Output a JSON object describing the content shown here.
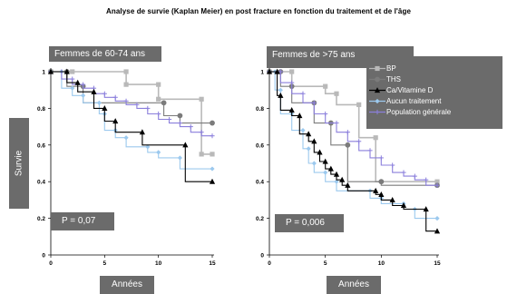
{
  "title": "Analyse de survie (Kaplan Meier) en post fracture en fonction du traitement et de l'âge",
  "colors": {
    "BP": "#b9b9b9",
    "THS": "#7b7b7b",
    "CaVitD": "#000000",
    "Aucun": "#9cc9ee",
    "Population": "#8b7fdc",
    "box": "#6b6b6b"
  },
  "legend": [
    {
      "key": "BP",
      "label": "BP",
      "marker": "square"
    },
    {
      "key": "THS",
      "label": "THS",
      "marker": "circle"
    },
    {
      "key": "CaVitD",
      "label": "Ca/Vitamine D",
      "marker": "triangle"
    },
    {
      "key": "Aucun",
      "label": "Aucun traitement",
      "marker": "diamond"
    },
    {
      "key": "Population",
      "label": "Population générale",
      "marker": "plus"
    }
  ],
  "chart_data": [
    {
      "type": "line",
      "title": "Femmes de 60-74 ans",
      "xlabel": "Années",
      "ylabel": "Survie",
      "annotation": "P = 0,07",
      "xlim": [
        0,
        15
      ],
      "ylim": [
        0,
        1
      ],
      "xticks": [
        "0",
        "5",
        "10",
        "15"
      ],
      "yticks": [
        "0",
        "0.2",
        "0.4",
        "0.6",
        "0.8",
        "1"
      ],
      "series": [
        {
          "key": "BP",
          "name": "BP",
          "points": [
            [
              0,
              1
            ],
            [
              2,
              1
            ],
            [
              7,
              1
            ],
            [
              7,
              0.93
            ],
            [
              10,
              0.93
            ],
            [
              10,
              0.85
            ],
            [
              14,
              0.85
            ],
            [
              14,
              0.55
            ],
            [
              15,
              0.55
            ]
          ]
        },
        {
          "key": "THS",
          "name": "THS",
          "points": [
            [
              0,
              1
            ],
            [
              1.5,
              1
            ],
            [
              1.5,
              0.92
            ],
            [
              3,
              0.92
            ],
            [
              3,
              0.83
            ],
            [
              10.5,
              0.83
            ],
            [
              10.5,
              0.76
            ],
            [
              12,
              0.76
            ],
            [
              12,
              0.72
            ],
            [
              15,
              0.72
            ]
          ]
        },
        {
          "key": "CaVitD",
          "name": "Ca/Vitamine D",
          "points": [
            [
              0,
              1
            ],
            [
              1.5,
              1
            ],
            [
              1.5,
              0.94
            ],
            [
              2.5,
              0.94
            ],
            [
              2.5,
              0.89
            ],
            [
              4,
              0.89
            ],
            [
              4,
              0.8
            ],
            [
              5,
              0.8
            ],
            [
              5,
              0.73
            ],
            [
              6,
              0.73
            ],
            [
              6,
              0.67
            ],
            [
              8.5,
              0.67
            ],
            [
              8.5,
              0.6
            ],
            [
              12.5,
              0.6
            ],
            [
              12.5,
              0.4
            ],
            [
              15,
              0.4
            ]
          ]
        },
        {
          "key": "Aucun",
          "name": "Aucun traitement",
          "points": [
            [
              0,
              1
            ],
            [
              1,
              1
            ],
            [
              1,
              0.91
            ],
            [
              2,
              0.91
            ],
            [
              2,
              0.87
            ],
            [
              3,
              0.87
            ],
            [
              3,
              0.83
            ],
            [
              4.5,
              0.83
            ],
            [
              4.5,
              0.77
            ],
            [
              5,
              0.77
            ],
            [
              5,
              0.68
            ],
            [
              6,
              0.68
            ],
            [
              6,
              0.64
            ],
            [
              7,
              0.64
            ],
            [
              7,
              0.59
            ],
            [
              9,
              0.59
            ],
            [
              9,
              0.56
            ],
            [
              10,
              0.56
            ],
            [
              10,
              0.53
            ],
            [
              12,
              0.53
            ],
            [
              12,
              0.47
            ],
            [
              15,
              0.47
            ]
          ]
        },
        {
          "key": "Population",
          "name": "Population générale",
          "points": [
            [
              0,
              1
            ],
            [
              1,
              1
            ],
            [
              1,
              0.96
            ],
            [
              2,
              0.96
            ],
            [
              2,
              0.93
            ],
            [
              3,
              0.93
            ],
            [
              3,
              0.91
            ],
            [
              4,
              0.91
            ],
            [
              4,
              0.88
            ],
            [
              5,
              0.88
            ],
            [
              5,
              0.86
            ],
            [
              6,
              0.86
            ],
            [
              6,
              0.84
            ],
            [
              7,
              0.84
            ],
            [
              7,
              0.82
            ],
            [
              8,
              0.82
            ],
            [
              8,
              0.8
            ],
            [
              9,
              0.8
            ],
            [
              9,
              0.77
            ],
            [
              10,
              0.77
            ],
            [
              10,
              0.74
            ],
            [
              11,
              0.74
            ],
            [
              11,
              0.72
            ],
            [
              12,
              0.72
            ],
            [
              12,
              0.7
            ],
            [
              13,
              0.7
            ],
            [
              13,
              0.67
            ],
            [
              14,
              0.67
            ],
            [
              14,
              0.65
            ],
            [
              15,
              0.65
            ]
          ]
        }
      ]
    },
    {
      "type": "line",
      "title": "Femmes de >75 ans",
      "xlabel": "Années",
      "ylabel": "",
      "annotation": "P = 0,006",
      "xlim": [
        0,
        15
      ],
      "ylim": [
        0,
        1
      ],
      "xticks": [
        "0",
        "5",
        "10",
        "15"
      ],
      "yticks": [
        "0",
        "0.2",
        "0.4",
        "0.6",
        "0.8",
        "1"
      ],
      "series": [
        {
          "key": "BP",
          "name": "BP",
          "points": [
            [
              0,
              1
            ],
            [
              2,
              1
            ],
            [
              2,
              0.92
            ],
            [
              5,
              0.92
            ],
            [
              5,
              0.88
            ],
            [
              6,
              0.88
            ],
            [
              6,
              0.82
            ],
            [
              8,
              0.82
            ],
            [
              8,
              0.64
            ],
            [
              9.5,
              0.64
            ],
            [
              9.5,
              0.4
            ],
            [
              15,
              0.4
            ]
          ]
        },
        {
          "key": "THS",
          "name": "THS",
          "points": [
            [
              0,
              1
            ],
            [
              1,
              1
            ],
            [
              1,
              0.92
            ],
            [
              2,
              0.92
            ],
            [
              2,
              0.83
            ],
            [
              4,
              0.83
            ],
            [
              4,
              0.72
            ],
            [
              5.5,
              0.72
            ],
            [
              5.5,
              0.6
            ],
            [
              7,
              0.6
            ],
            [
              7,
              0.4
            ],
            [
              10,
              0.4
            ],
            [
              10,
              0.38
            ],
            [
              15,
              0.38
            ]
          ]
        },
        {
          "key": "CaVitD",
          "name": "Ca/Vitamine D",
          "points": [
            [
              0,
              1
            ],
            [
              0.7,
              1
            ],
            [
              0.7,
              0.87
            ],
            [
              1,
              0.87
            ],
            [
              1,
              0.79
            ],
            [
              2,
              0.79
            ],
            [
              2,
              0.76
            ],
            [
              2.7,
              0.76
            ],
            [
              2.7,
              0.66
            ],
            [
              3.5,
              0.66
            ],
            [
              3.5,
              0.62
            ],
            [
              4,
              0.62
            ],
            [
              4,
              0.56
            ],
            [
              4.5,
              0.56
            ],
            [
              4.5,
              0.51
            ],
            [
              5,
              0.51
            ],
            [
              5,
              0.47
            ],
            [
              5.5,
              0.47
            ],
            [
              5.5,
              0.44
            ],
            [
              6,
              0.44
            ],
            [
              6,
              0.41
            ],
            [
              6.5,
              0.41
            ],
            [
              6.5,
              0.38
            ],
            [
              7,
              0.38
            ],
            [
              7,
              0.35
            ],
            [
              9.5,
              0.35
            ],
            [
              9.5,
              0.33
            ],
            [
              10,
              0.33
            ],
            [
              10,
              0.3
            ],
            [
              11,
              0.3
            ],
            [
              11,
              0.27
            ],
            [
              12,
              0.27
            ],
            [
              12,
              0.25
            ],
            [
              14,
              0.25
            ],
            [
              14,
              0.13
            ],
            [
              15,
              0.13
            ]
          ]
        },
        {
          "key": "Aucun",
          "name": "Aucun traitement",
          "points": [
            [
              0,
              1
            ],
            [
              0.5,
              1
            ],
            [
              0.5,
              0.9
            ],
            [
              1,
              0.9
            ],
            [
              1,
              0.77
            ],
            [
              2,
              0.77
            ],
            [
              2,
              0.68
            ],
            [
              3,
              0.68
            ],
            [
              3,
              0.58
            ],
            [
              3.5,
              0.58
            ],
            [
              3.5,
              0.5
            ],
            [
              4,
              0.5
            ],
            [
              4,
              0.45
            ],
            [
              5,
              0.45
            ],
            [
              5,
              0.4
            ],
            [
              6,
              0.4
            ],
            [
              6,
              0.35
            ],
            [
              9,
              0.35
            ],
            [
              9,
              0.31
            ],
            [
              10,
              0.31
            ],
            [
              10,
              0.28
            ],
            [
              12,
              0.28
            ],
            [
              12,
              0.25
            ],
            [
              13,
              0.25
            ],
            [
              13,
              0.2
            ],
            [
              15,
              0.2
            ]
          ]
        },
        {
          "key": "Population",
          "name": "Population générale",
          "points": [
            [
              0,
              1
            ],
            [
              1,
              1
            ],
            [
              1,
              0.94
            ],
            [
              2,
              0.94
            ],
            [
              2,
              0.88
            ],
            [
              3,
              0.88
            ],
            [
              3,
              0.83
            ],
            [
              4,
              0.83
            ],
            [
              4,
              0.77
            ],
            [
              5,
              0.77
            ],
            [
              5,
              0.72
            ],
            [
              6,
              0.72
            ],
            [
              6,
              0.67
            ],
            [
              7,
              0.67
            ],
            [
              7,
              0.62
            ],
            [
              8,
              0.62
            ],
            [
              8,
              0.57
            ],
            [
              9,
              0.57
            ],
            [
              9,
              0.53
            ],
            [
              10,
              0.53
            ],
            [
              10,
              0.49
            ],
            [
              11,
              0.49
            ],
            [
              11,
              0.45
            ],
            [
              12,
              0.45
            ],
            [
              12,
              0.43
            ],
            [
              13,
              0.43
            ],
            [
              13,
              0.41
            ],
            [
              14,
              0.41
            ],
            [
              14,
              0.38
            ],
            [
              15,
              0.38
            ]
          ]
        }
      ]
    }
  ]
}
